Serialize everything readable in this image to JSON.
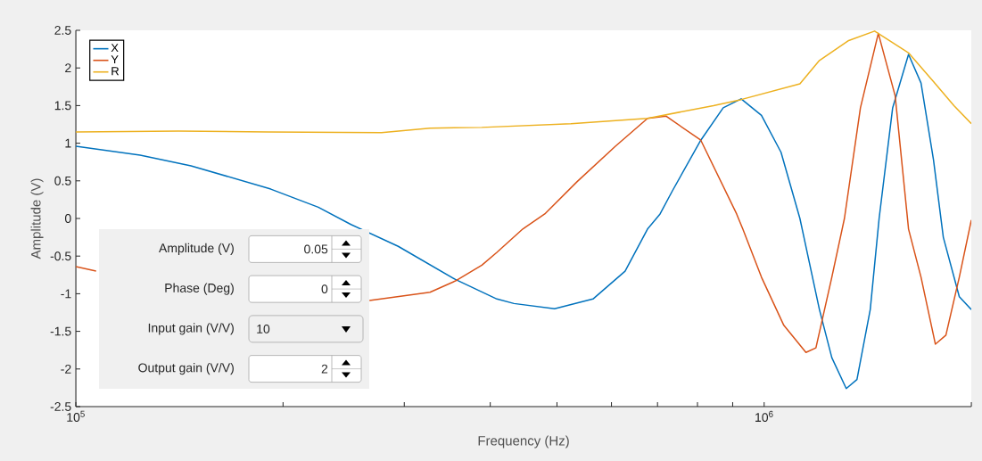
{
  "chart_data": {
    "type": "line",
    "xlabel": "Frequency (Hz)",
    "ylabel": "Amplitude (V)",
    "log": "x",
    "xlim": [
      100000,
      2000000
    ],
    "xticks": [
      {
        "value": 100000,
        "label": "10$^{5}$"
      },
      {
        "value": 200000,
        "label": null
      },
      {
        "value": 300000,
        "label": null
      },
      {
        "value": 400000,
        "label": null
      },
      {
        "value": 500000,
        "label": null
      },
      {
        "value": 600000,
        "label": null
      },
      {
        "value": 700000,
        "label": null
      },
      {
        "value": 800000,
        "label": null
      },
      {
        "value": 900000,
        "label": null
      },
      {
        "value": 1000000,
        "label": "10$^{6}$"
      },
      {
        "value": 2000000,
        "label": null
      }
    ],
    "ylim": [
      -2.5,
      2.5
    ],
    "yticks": [
      -2.5,
      -2,
      -1.5,
      -1,
      -0.5,
      0,
      0.5,
      1,
      1.5,
      2,
      2.5
    ],
    "legend": "top left",
    "series": [
      {
        "name": "X",
        "color": "#0072bd",
        "x": [
          100000,
          124000,
          147000,
          192000,
          225000,
          251000,
          294000,
          356000,
          409000,
          433000,
          496000,
          564000,
          628000,
          677000,
          706000,
          736000,
          809000,
          872000,
          926000,
          991000,
          1058000,
          1127000,
          1203000,
          1254000,
          1316000,
          1364000,
          1426000,
          1469000,
          1537000,
          1621000,
          1690000,
          1762000,
          1821000,
          1921000,
          2000000
        ],
        "values": [
          0.96,
          0.84,
          0.7,
          0.39,
          0.15,
          -0.08,
          -0.37,
          -0.81,
          -1.07,
          -1.13,
          -1.2,
          -1.07,
          -0.7,
          -0.14,
          0.06,
          0.37,
          1.04,
          1.47,
          1.59,
          1.37,
          0.88,
          0.0,
          -1.21,
          -1.85,
          -2.26,
          -2.14,
          -1.21,
          0.0,
          1.47,
          2.18,
          1.8,
          0.78,
          -0.25,
          -1.04,
          -1.21
        ]
      },
      {
        "name": "Y",
        "color": "#d95319",
        "x": [
          100000,
          107000,
          200000,
          267000,
          327000,
          356000,
          389000,
          409000,
          446000,
          480000,
          535000,
          608000,
          677000,
          720000,
          809000,
          912000,
          931000,
          991000,
          1068000,
          1150000,
          1189000,
          1254000,
          1308000,
          1380000,
          1465000,
          1550000,
          1621000,
          1690000,
          1773000,
          1837000,
          1921000,
          2000000
        ],
        "values": [
          -0.64,
          -0.7,
          null,
          -1.09,
          -0.98,
          -0.83,
          -0.62,
          -0.45,
          -0.14,
          0.06,
          0.49,
          0.96,
          1.33,
          1.36,
          1.04,
          0.06,
          -0.14,
          -0.78,
          -1.42,
          -1.78,
          -1.72,
          -0.78,
          0.0,
          1.47,
          2.46,
          1.63,
          -0.14,
          -0.78,
          -1.67,
          -1.55,
          -0.78,
          -0.02
        ]
      },
      {
        "name": "R",
        "color": "#edb120",
        "x": [
          100000,
          141000,
          190000,
          278000,
          327000,
          389000,
          524000,
          677000,
          844000,
          926000,
          1127000,
          1203000,
          1324000,
          1447000,
          1621000,
          1762000,
          1887000,
          2000000
        ],
        "values": [
          1.15,
          1.16,
          1.15,
          1.14,
          1.2,
          1.21,
          1.26,
          1.33,
          1.5,
          1.58,
          1.79,
          2.1,
          2.36,
          2.49,
          2.2,
          1.82,
          1.5,
          1.26
        ]
      }
    ],
    "annotations": [
      "Amplitude (V)",
      "0.05",
      "Phase (Deg)",
      "0",
      "Input gain (V/V)",
      "10",
      "Output gain (V/V)",
      "2"
    ]
  }
}
